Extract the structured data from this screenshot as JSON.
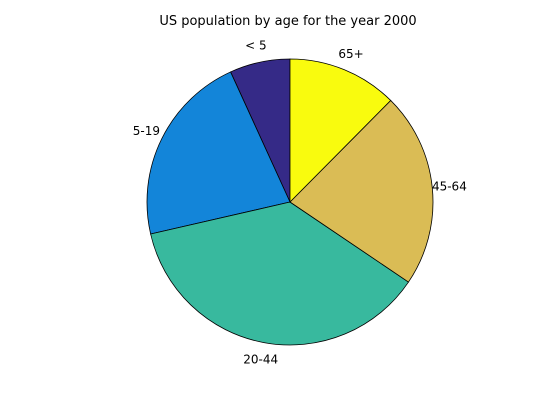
{
  "chart_data": {
    "type": "pie",
    "title": "US population by age for the year 2000",
    "categories": [
      "< 5",
      "5-19",
      "20-44",
      "45-64",
      "65+"
    ],
    "values": [
      19.2,
      61.3,
      104.0,
      62.0,
      35.0
    ],
    "colors": [
      "#352a87",
      "#1385d9",
      "#38b99e",
      "#dabc55",
      "#f9fb0e"
    ],
    "start_angle_deg": 90,
    "direction": "counterclockwise",
    "legend": "none"
  }
}
